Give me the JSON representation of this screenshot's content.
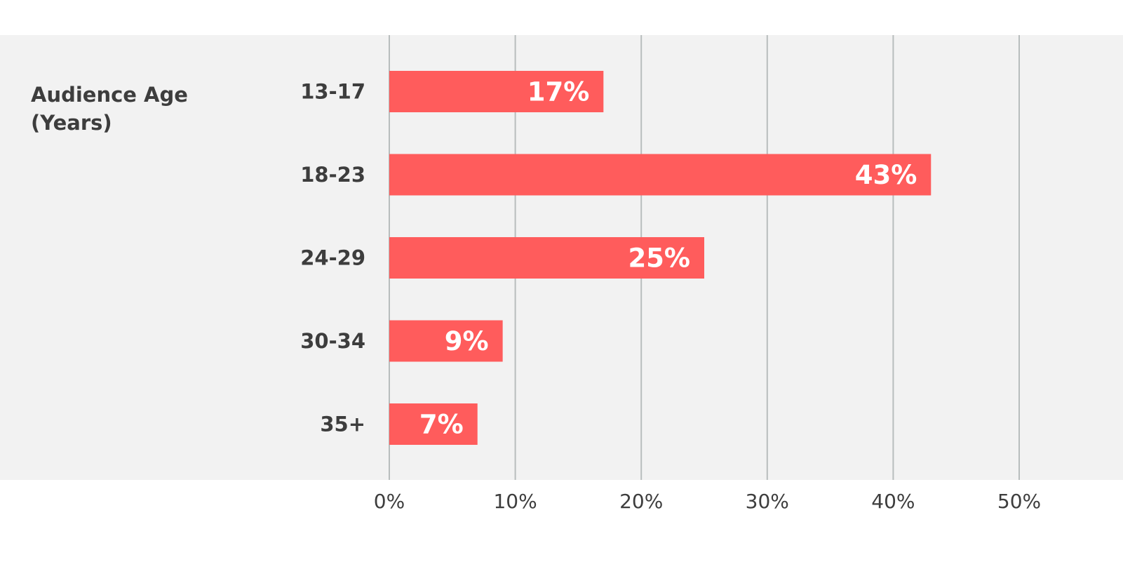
{
  "chart_data": {
    "type": "bar",
    "orientation": "horizontal",
    "title": "Audience Age\n(Years)",
    "categories": [
      "13-17",
      "18-23",
      "24-29",
      "30-34",
      "35+"
    ],
    "values": [
      17,
      43,
      25,
      9,
      7
    ],
    "value_labels": [
      "17%",
      "43%",
      "25%",
      "9%",
      "7%"
    ],
    "xlim": [
      0,
      50
    ],
    "xticks": [
      0,
      10,
      20,
      30,
      40,
      50
    ],
    "xtick_labels": [
      "0%",
      "10%",
      "20%",
      "30%",
      "40%",
      "50%"
    ],
    "xlabel": "",
    "ylabel": "",
    "grid": "vertical",
    "colors": {
      "bar": "#ff5c5c",
      "panel": "#f2f2f2",
      "page": "#ffffff",
      "grid": "#b8bdbd",
      "text": "#3d3d3d",
      "bar_text": "#ffffff"
    }
  }
}
